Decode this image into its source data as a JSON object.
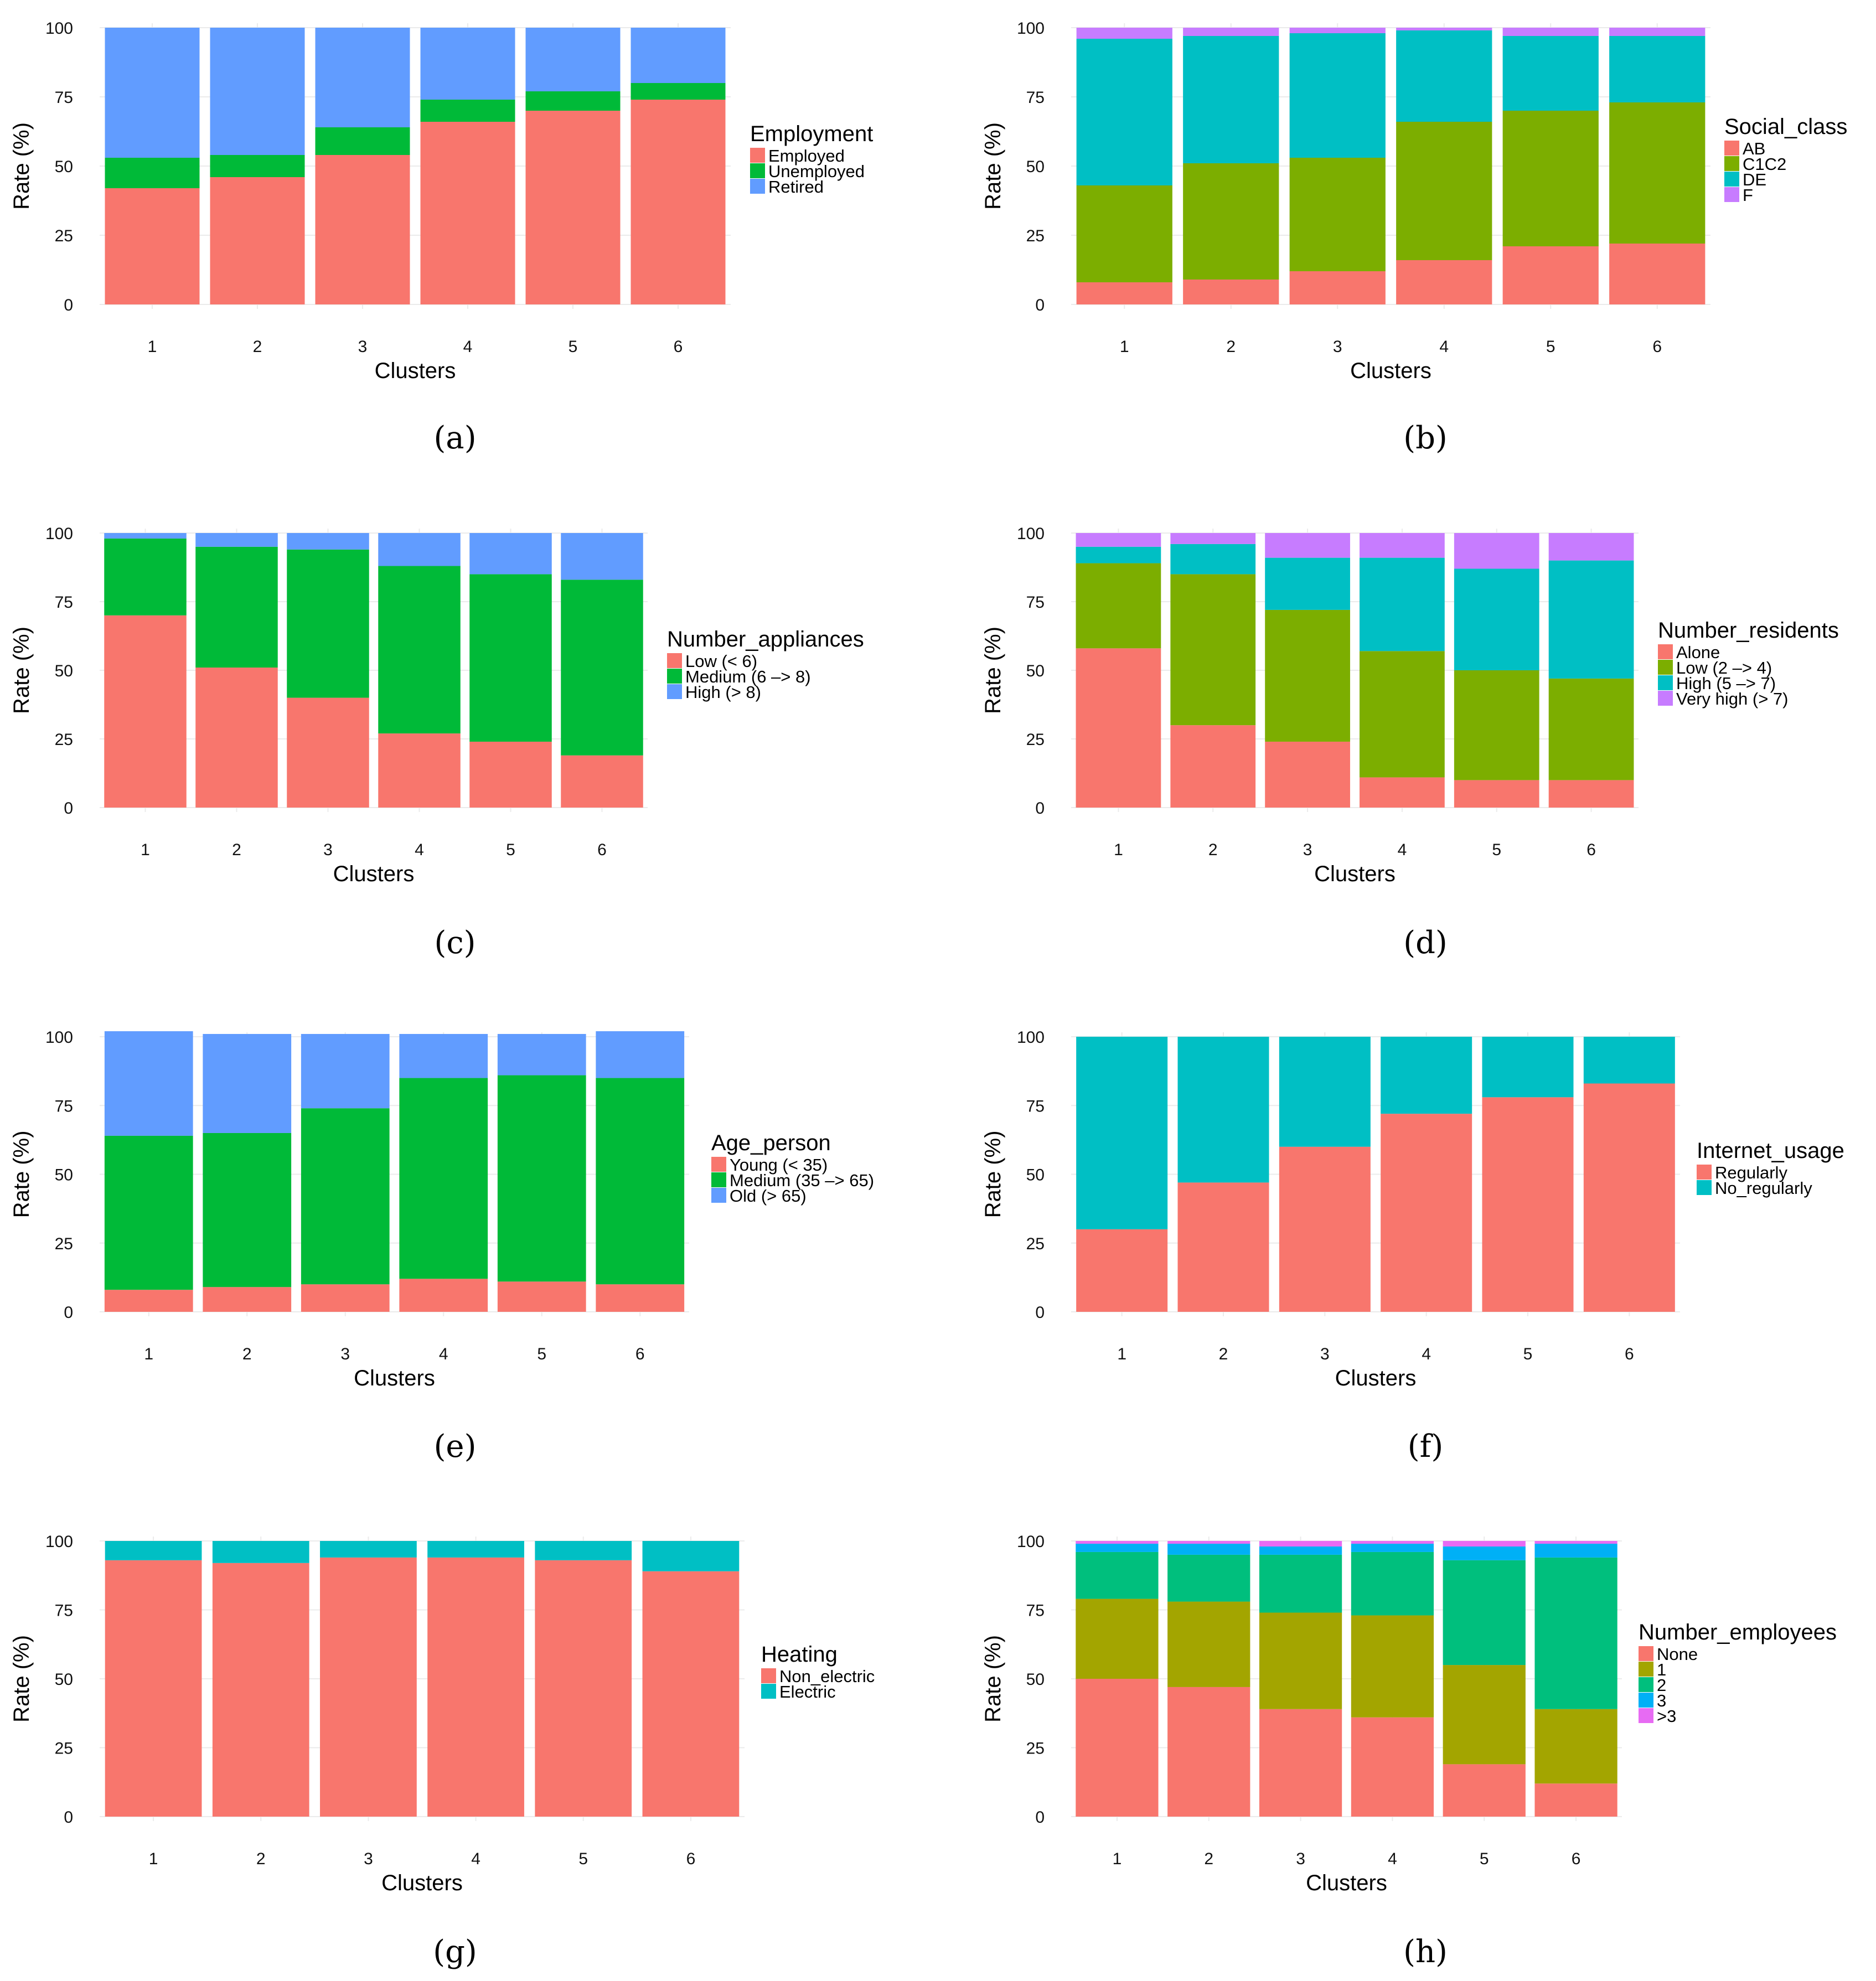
{
  "chart_data": [
    {
      "id": "a",
      "caption": "(a)",
      "type": "bar",
      "stacked": true,
      "xlabel": "Clusters",
      "ylabel": "Rate (%)",
      "ylim": [
        0,
        100
      ],
      "yticks": [
        "0",
        "25",
        "50",
        "75",
        "100"
      ],
      "categories": [
        "1",
        "2",
        "3",
        "4",
        "5",
        "6"
      ],
      "legend_title": "Employment",
      "legend_position": "right",
      "series": [
        {
          "name": "Employed",
          "color": "#F8766D",
          "values": [
            42,
            46,
            54,
            66,
            70,
            74
          ]
        },
        {
          "name": "Unemployed",
          "color": "#00BA38",
          "values": [
            11,
            8,
            10,
            8,
            7,
            6
          ]
        },
        {
          "name": "Retired",
          "color": "#619CFF",
          "values": [
            47,
            46,
            36,
            26,
            23,
            20
          ]
        }
      ]
    },
    {
      "id": "b",
      "caption": "(b)",
      "type": "bar",
      "stacked": true,
      "xlabel": "Clusters",
      "ylabel": "Rate (%)",
      "ylim": [
        0,
        100
      ],
      "yticks": [
        "0",
        "25",
        "50",
        "75",
        "100"
      ],
      "categories": [
        "1",
        "2",
        "3",
        "4",
        "5",
        "6"
      ],
      "legend_title": "Social_class",
      "legend_position": "right",
      "series": [
        {
          "name": "AB",
          "color": "#F8766D",
          "values": [
            8,
            9,
            12,
            16,
            21,
            22
          ]
        },
        {
          "name": "C1C2",
          "color": "#7CAE00",
          "values": [
            35,
            42,
            41,
            50,
            49,
            51
          ]
        },
        {
          "name": "DE",
          "color": "#00BFC4",
          "values": [
            53,
            46,
            45,
            33,
            27,
            24
          ]
        },
        {
          "name": "F",
          "color": "#C77CFF",
          "values": [
            4,
            3,
            2,
            1,
            3,
            3
          ]
        }
      ]
    },
    {
      "id": "c",
      "caption": "(c)",
      "type": "bar",
      "stacked": true,
      "xlabel": "Clusters",
      "ylabel": "Rate (%)",
      "ylim": [
        0,
        100
      ],
      "yticks": [
        "0",
        "25",
        "50",
        "75",
        "100"
      ],
      "categories": [
        "1",
        "2",
        "3",
        "4",
        "5",
        "6"
      ],
      "legend_title": "Number_appliances",
      "legend_position": "right",
      "series": [
        {
          "name": "Low (< 6)",
          "color": "#F8766D",
          "values": [
            70,
            51,
            40,
            27,
            24,
            19
          ]
        },
        {
          "name": "Medium (6 –> 8)",
          "color": "#00BA38",
          "values": [
            28,
            44,
            54,
            61,
            61,
            64
          ]
        },
        {
          "name": "High (> 8)",
          "color": "#619CFF",
          "values": [
            2,
            5,
            6,
            12,
            15,
            17
          ]
        }
      ]
    },
    {
      "id": "d",
      "caption": "(d)",
      "type": "bar",
      "stacked": true,
      "xlabel": "Clusters",
      "ylabel": "Rate (%)",
      "ylim": [
        0,
        100
      ],
      "yticks": [
        "0",
        "25",
        "50",
        "75",
        "100"
      ],
      "categories": [
        "1",
        "2",
        "3",
        "4",
        "5",
        "6"
      ],
      "legend_title": "Number_residents",
      "legend_position": "right",
      "series": [
        {
          "name": "Alone",
          "color": "#F8766D",
          "values": [
            58,
            30,
            24,
            11,
            10,
            10
          ]
        },
        {
          "name": "Low (2 –> 4)",
          "color": "#7CAE00",
          "values": [
            31,
            55,
            48,
            46,
            40,
            37
          ]
        },
        {
          "name": "High (5 –> 7)",
          "color": "#00BFC4",
          "values": [
            6,
            11,
            19,
            34,
            37,
            43
          ]
        },
        {
          "name": "Very high (> 7)",
          "color": "#C77CFF",
          "values": [
            5,
            4,
            9,
            9,
            13,
            10
          ]
        }
      ]
    },
    {
      "id": "e",
      "caption": "(e)",
      "type": "bar",
      "stacked": true,
      "xlabel": "Clusters",
      "ylabel": "Rate (%)",
      "ylim": [
        0,
        100
      ],
      "yticks": [
        "0",
        "25",
        "50",
        "75",
        "100"
      ],
      "categories": [
        "1",
        "2",
        "3",
        "4",
        "5",
        "6"
      ],
      "legend_title": "Age_person",
      "legend_position": "right",
      "series": [
        {
          "name": "Young (< 35)",
          "color": "#F8766D",
          "values": [
            8,
            9,
            10,
            12,
            11,
            10
          ]
        },
        {
          "name": "Medium (35 –> 65)",
          "color": "#00BA38",
          "values": [
            56,
            56,
            64,
            73,
            75,
            75
          ]
        },
        {
          "name": "Old (> 65)",
          "color": "#619CFF",
          "values": [
            38,
            36,
            27,
            16,
            15,
            17
          ]
        }
      ]
    },
    {
      "id": "f",
      "caption": "(f)",
      "type": "bar",
      "stacked": true,
      "xlabel": "Clusters",
      "ylabel": "Rate (%)",
      "ylim": [
        0,
        100
      ],
      "yticks": [
        "0",
        "25",
        "50",
        "75",
        "100"
      ],
      "categories": [
        "1",
        "2",
        "3",
        "4",
        "5",
        "6"
      ],
      "legend_title": "Internet_usage",
      "legend_position": "right",
      "series": [
        {
          "name": "Regularly",
          "color": "#F8766D",
          "values": [
            30,
            47,
            60,
            72,
            78,
            83
          ]
        },
        {
          "name": "No_regularly",
          "color": "#00BFC4",
          "values": [
            70,
            53,
            40,
            28,
            22,
            17
          ]
        }
      ]
    },
    {
      "id": "g",
      "caption": "(g)",
      "type": "bar",
      "stacked": true,
      "xlabel": "Clusters",
      "ylabel": "Rate (%)",
      "ylim": [
        0,
        100
      ],
      "yticks": [
        "0",
        "25",
        "50",
        "75",
        "100"
      ],
      "categories": [
        "1",
        "2",
        "3",
        "4",
        "5",
        "6"
      ],
      "legend_title": "Heating",
      "legend_position": "right",
      "series": [
        {
          "name": "Non_electric",
          "color": "#F8766D",
          "values": [
            93,
            92,
            94,
            94,
            93,
            89
          ]
        },
        {
          "name": "Electric",
          "color": "#00BFC4",
          "values": [
            7,
            8,
            6,
            6,
            7,
            11
          ]
        }
      ]
    },
    {
      "id": "h",
      "caption": "(h)",
      "type": "bar",
      "stacked": true,
      "xlabel": "Clusters",
      "ylabel": "Rate (%)",
      "ylim": [
        0,
        100
      ],
      "yticks": [
        "0",
        "25",
        "50",
        "75",
        "100"
      ],
      "categories": [
        "1",
        "2",
        "3",
        "4",
        "5",
        "6"
      ],
      "legend_title": "Number_employees",
      "legend_position": "right",
      "series": [
        {
          "name": "None",
          "color": "#F8766D",
          "values": [
            50,
            47,
            39,
            36,
            19,
            12
          ]
        },
        {
          "name": "1",
          "color": "#A3A500",
          "values": [
            29,
            31,
            35,
            37,
            36,
            27
          ]
        },
        {
          "name": "2",
          "color": "#00BF7D",
          "values": [
            17,
            17,
            21,
            23,
            38,
            55
          ]
        },
        {
          "name": "3",
          "color": "#00B0F6",
          "values": [
            3,
            4,
            3,
            3,
            5,
            5
          ]
        },
        {
          "name": ">3",
          "color": "#E76BF3",
          "values": [
            1,
            1,
            2,
            1,
            2,
            1
          ]
        }
      ]
    }
  ]
}
